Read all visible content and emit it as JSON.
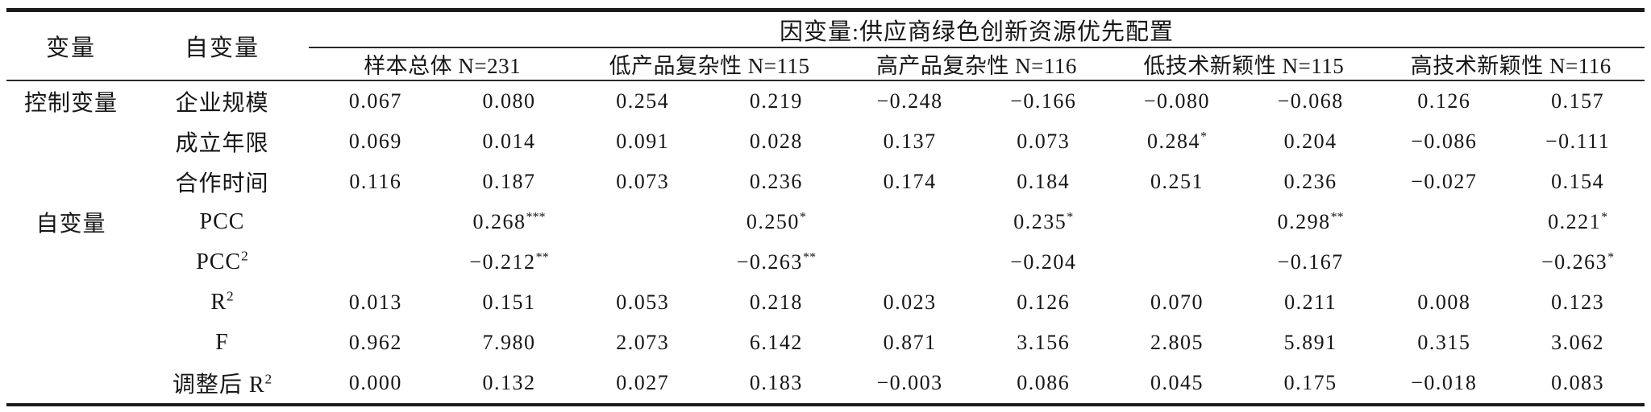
{
  "table": {
    "col_headers": {
      "variable": "变量",
      "independent": "自变量",
      "dependent_span": "因变量:供应商绿色创新资源优先配置",
      "groups": [
        "样本总体 N=231",
        "低产品复杂性 N=115",
        "高产品复杂性 N=116",
        "低技术新颖性 N=115",
        "高技术新颖性 N=116"
      ]
    },
    "rows": [
      {
        "category": "控制变量",
        "label": {
          "t": "企业规模"
        },
        "cells": [
          "0.067",
          "0.080",
          "0.254",
          "0.219",
          "−0.248",
          "−0.166",
          "−0.080",
          "−0.068",
          "0.126",
          "0.157"
        ]
      },
      {
        "category": "",
        "label": {
          "t": "成立年限"
        },
        "cells": [
          "0.069",
          "0.014",
          "0.091",
          "0.028",
          "0.137",
          "0.073",
          {
            "t": "0.284",
            "sup": "*"
          },
          "0.204",
          "−0.086",
          "−0.111"
        ]
      },
      {
        "category": "",
        "label": {
          "t": "合作时间"
        },
        "cells": [
          "0.116",
          "0.187",
          "0.073",
          "0.236",
          "0.174",
          "0.184",
          "0.251",
          "0.236",
          "−0.027",
          "0.154"
        ]
      },
      {
        "category": "自变量",
        "label": {
          "t": "PCC"
        },
        "cells": [
          "",
          {
            "t": "0.268",
            "sup": "***"
          },
          "",
          {
            "t": "0.250",
            "sup": "*"
          },
          "",
          {
            "t": "0.235",
            "sup": "*"
          },
          "",
          {
            "t": "0.298",
            "sup": "**"
          },
          "",
          {
            "t": "0.221",
            "sup": "*"
          }
        ]
      },
      {
        "category": "",
        "label": {
          "t": "PCC",
          "sup": "2"
        },
        "cells": [
          "",
          {
            "t": "−0.212",
            "sup": "**"
          },
          "",
          {
            "t": "−0.263",
            "sup": "**"
          },
          "",
          "−0.204",
          "",
          "−0.167",
          "",
          {
            "t": "−0.263",
            "sup": "*"
          }
        ]
      },
      {
        "category": "",
        "label": {
          "t": "R",
          "sup": "2"
        },
        "cells": [
          "0.013",
          "0.151",
          "0.053",
          "0.218",
          "0.023",
          "0.126",
          "0.070",
          "0.211",
          "0.008",
          "0.123"
        ]
      },
      {
        "category": "",
        "label": {
          "t": "F"
        },
        "cells": [
          "0.962",
          "7.980",
          "2.073",
          "6.142",
          "0.871",
          "3.156",
          "2.805",
          "5.891",
          "0.315",
          "3.062"
        ]
      },
      {
        "category": "",
        "label": {
          "t": "调整后 R",
          "sup": "2"
        },
        "cells": [
          "0.000",
          "0.132",
          "0.027",
          "0.183",
          "−0.003",
          "0.086",
          "0.045",
          "0.175",
          "−0.018",
          "0.083"
        ]
      }
    ]
  }
}
